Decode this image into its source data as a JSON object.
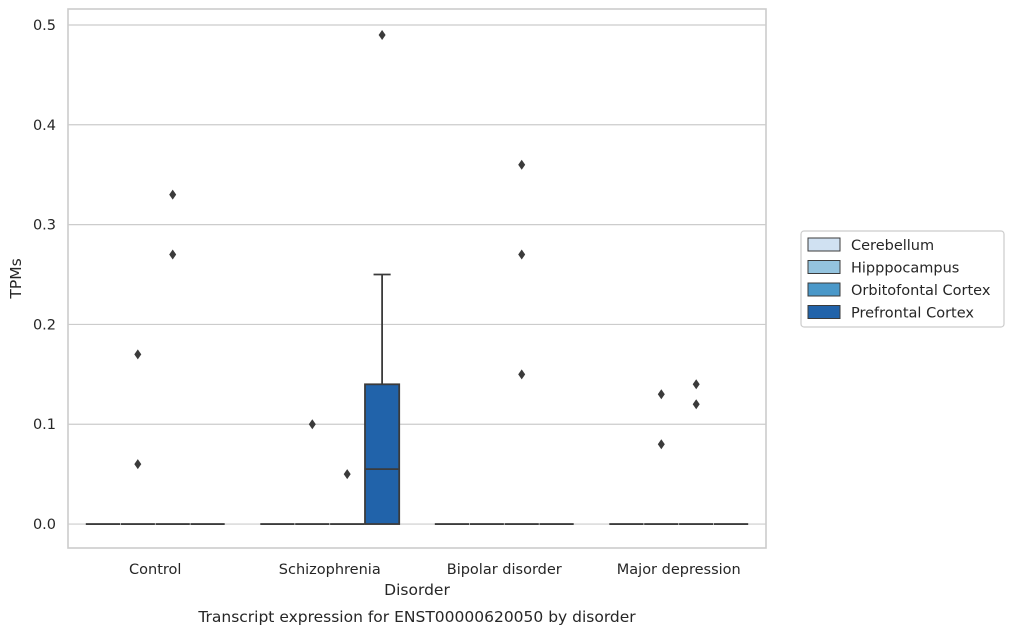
{
  "chart_data": {
    "type": "box",
    "title": "",
    "caption": "Transcript expression for ENST00000620050 by disorder",
    "xlabel": "Disorder",
    "ylabel": "TPMs",
    "ylim": [
      -0.024,
      0.516
    ],
    "yticks": [
      0.0,
      0.1,
      0.2,
      0.3,
      0.4,
      0.5
    ],
    "ytick_labels": [
      "0.0",
      "0.1",
      "0.2",
      "0.3",
      "0.4",
      "0.5"
    ],
    "categories": [
      "Control",
      "Schizophrenia",
      "Bipolar disorder",
      "Major depression"
    ],
    "grid": true,
    "legend_position": "right",
    "series": [
      {
        "name": "Cerebellum",
        "color": "#d0e1f2",
        "boxes": [
          {
            "category": "Control",
            "q1": 0,
            "median": 0,
            "q3": 0,
            "whisker_low": 0,
            "whisker_high": 0,
            "outliers": []
          },
          {
            "category": "Schizophrenia",
            "q1": 0,
            "median": 0,
            "q3": 0,
            "whisker_low": 0,
            "whisker_high": 0,
            "outliers": []
          },
          {
            "category": "Bipolar disorder",
            "q1": 0,
            "median": 0,
            "q3": 0,
            "whisker_low": 0,
            "whisker_high": 0,
            "outliers": []
          },
          {
            "category": "Major depression",
            "q1": 0,
            "median": 0,
            "q3": 0,
            "whisker_low": 0,
            "whisker_high": 0,
            "outliers": []
          }
        ]
      },
      {
        "name": "Hipppocampus",
        "color": "#94c4df",
        "boxes": [
          {
            "category": "Control",
            "q1": 0,
            "median": 0,
            "q3": 0,
            "whisker_low": 0,
            "whisker_high": 0,
            "outliers": [
              0.06,
              0.17
            ]
          },
          {
            "category": "Schizophrenia",
            "q1": 0,
            "median": 0,
            "q3": 0,
            "whisker_low": 0,
            "whisker_high": 0,
            "outliers": [
              0.1
            ]
          },
          {
            "category": "Bipolar disorder",
            "q1": 0,
            "median": 0,
            "q3": 0,
            "whisker_low": 0,
            "whisker_high": 0,
            "outliers": []
          },
          {
            "category": "Major depression",
            "q1": 0,
            "median": 0,
            "q3": 0,
            "whisker_low": 0,
            "whisker_high": 0,
            "outliers": [
              0.08,
              0.13
            ]
          }
        ]
      },
      {
        "name": "Orbitofontal Cortex",
        "color": "#4a98c9",
        "boxes": [
          {
            "category": "Control",
            "q1": 0,
            "median": 0,
            "q3": 0,
            "whisker_low": 0,
            "whisker_high": 0,
            "outliers": [
              0.27,
              0.33
            ]
          },
          {
            "category": "Schizophrenia",
            "q1": 0,
            "median": 0,
            "q3": 0,
            "whisker_low": 0,
            "whisker_high": 0,
            "outliers": [
              0.05
            ]
          },
          {
            "category": "Bipolar disorder",
            "q1": 0,
            "median": 0,
            "q3": 0,
            "whisker_low": 0,
            "whisker_high": 0,
            "outliers": [
              0.15,
              0.27,
              0.36
            ]
          },
          {
            "category": "Major depression",
            "q1": 0,
            "median": 0,
            "q3": 0,
            "whisker_low": 0,
            "whisker_high": 0,
            "outliers": [
              0.12,
              0.14
            ]
          }
        ]
      },
      {
        "name": "Prefrontal Cortex",
        "color": "#2163aa",
        "boxes": [
          {
            "category": "Control",
            "q1": 0,
            "median": 0,
            "q3": 0,
            "whisker_low": 0,
            "whisker_high": 0,
            "outliers": []
          },
          {
            "category": "Schizophrenia",
            "q1": 0,
            "median": 0.055,
            "q3": 0.14,
            "whisker_low": 0,
            "whisker_high": 0.25,
            "outliers": [
              0.49
            ]
          },
          {
            "category": "Bipolar disorder",
            "q1": 0,
            "median": 0,
            "q3": 0,
            "whisker_low": 0,
            "whisker_high": 0,
            "outliers": []
          },
          {
            "category": "Major depression",
            "q1": 0,
            "median": 0,
            "q3": 0,
            "whisker_low": 0,
            "whisker_high": 0,
            "outliers": []
          }
        ]
      }
    ]
  }
}
